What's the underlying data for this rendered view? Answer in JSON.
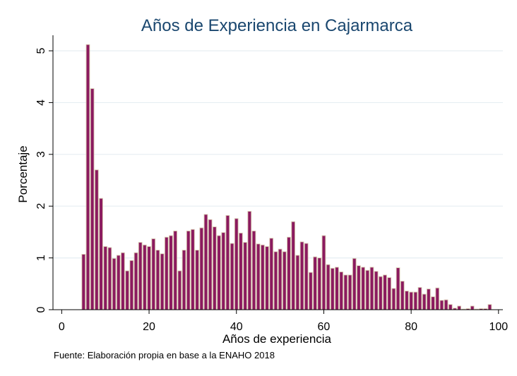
{
  "chart_data": {
    "type": "bar",
    "title": "Años de Experiencia en Cajarmarca",
    "xlabel": "Años de experiencia",
    "ylabel": "Porcentaje",
    "note": "Fuente: Elaboración propia en base a la ENAHO 2018",
    "xlim": [
      -2,
      101
    ],
    "ylim": [
      0,
      5.3
    ],
    "xticks": [
      0,
      20,
      40,
      60,
      80,
      100
    ],
    "yticks": [
      0,
      1,
      2,
      3,
      4,
      5
    ],
    "grid": true,
    "bar_color": "#8b1a5f",
    "bar_edge_color": "#d8c8b0",
    "title_color": "#1a476f",
    "x": [
      5,
      6,
      7,
      8,
      9,
      10,
      11,
      12,
      13,
      14,
      15,
      16,
      17,
      18,
      19,
      20,
      21,
      22,
      23,
      24,
      25,
      26,
      27,
      28,
      29,
      30,
      31,
      32,
      33,
      34,
      35,
      36,
      37,
      38,
      39,
      40,
      41,
      42,
      43,
      44,
      45,
      46,
      47,
      48,
      49,
      50,
      51,
      52,
      53,
      54,
      55,
      56,
      57,
      58,
      59,
      60,
      61,
      62,
      63,
      64,
      65,
      66,
      67,
      68,
      69,
      70,
      71,
      72,
      73,
      74,
      75,
      76,
      77,
      78,
      79,
      80,
      81,
      82,
      83,
      84,
      85,
      86,
      87,
      88,
      89,
      90,
      91,
      92,
      93,
      94,
      95,
      96,
      97,
      98
    ],
    "values": [
      1.07,
      5.12,
      4.27,
      2.7,
      2.15,
      1.22,
      1.2,
      0.99,
      1.05,
      1.1,
      0.75,
      0.95,
      1.1,
      1.3,
      1.25,
      1.22,
      1.37,
      1.15,
      1.08,
      1.4,
      1.43,
      1.52,
      0.75,
      1.15,
      1.52,
      1.55,
      1.15,
      1.58,
      1.84,
      1.74,
      1.6,
      1.43,
      1.49,
      1.82,
      1.28,
      1.76,
      1.48,
      1.3,
      1.9,
      1.52,
      1.27,
      1.25,
      1.22,
      1.38,
      1.12,
      1.17,
      1.12,
      1.4,
      1.7,
      1.05,
      1.31,
      1.28,
      0.72,
      1.02,
      1.0,
      1.43,
      0.87,
      0.8,
      0.82,
      0.73,
      0.67,
      0.67,
      0.99,
      0.85,
      0.82,
      0.76,
      0.82,
      0.74,
      0.64,
      0.67,
      0.62,
      0.41,
      0.81,
      0.55,
      0.36,
      0.34,
      0.34,
      0.43,
      0.3,
      0.4,
      0.25,
      0.42,
      0.18,
      0.19,
      0.1,
      0.03,
      0.07,
      0.0,
      0.02,
      0.07,
      0.01,
      0.02,
      0.02,
      0.1
    ]
  }
}
